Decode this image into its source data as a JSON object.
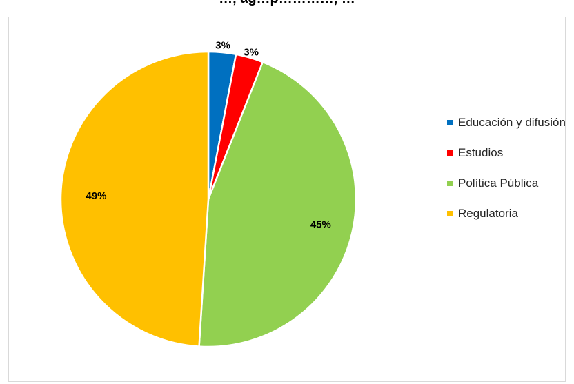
{
  "chart_data": {
    "type": "pie",
    "title": "…, ag…p…………, …",
    "categories": [
      "Educación y difusión",
      "Estudios",
      "Política Pública",
      "Regulatoria"
    ],
    "values": [
      3,
      3,
      45,
      49
    ],
    "labels": [
      "3%",
      "3%",
      "45%",
      "49%"
    ],
    "colors": [
      "#0070C0",
      "#FF0000",
      "#92D050",
      "#FFC000"
    ],
    "legend_position": "right"
  }
}
